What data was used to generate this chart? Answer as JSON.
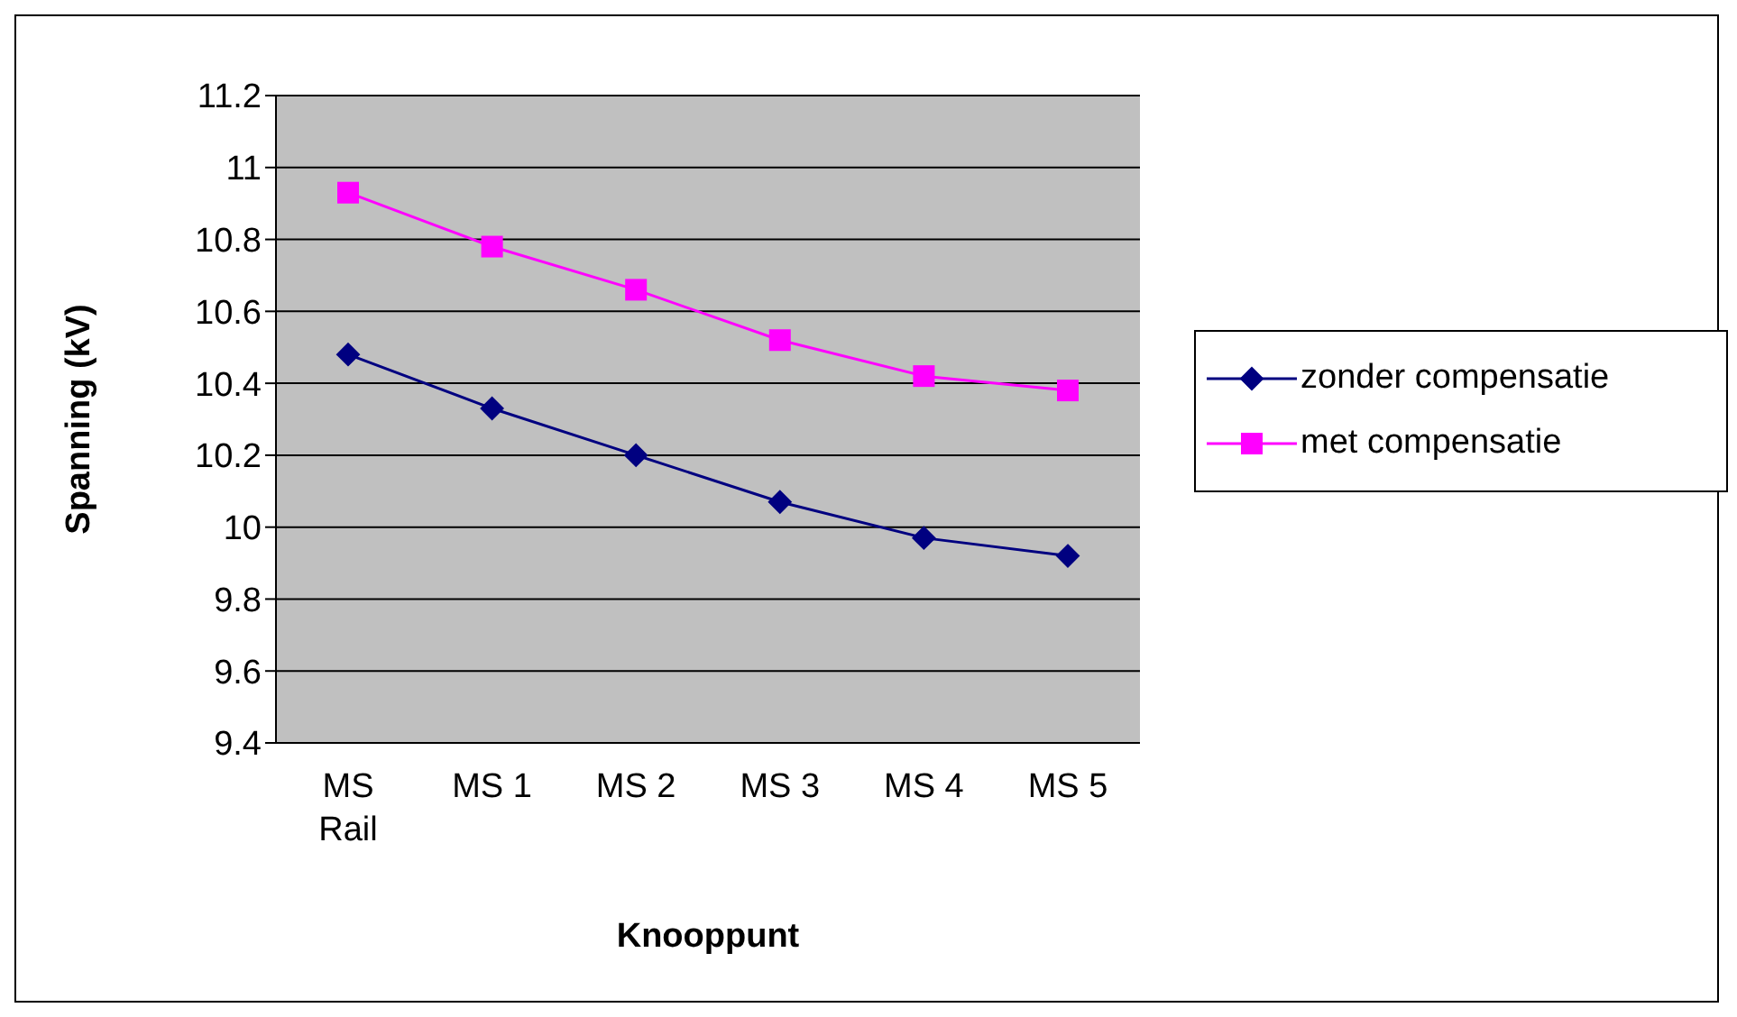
{
  "chart_data": {
    "type": "line",
    "xlabel": "Knooppunt",
    "ylabel": "Spanning (kV)",
    "categories": [
      "MS Rail",
      "MS 1",
      "MS 2",
      "MS 3",
      "MS 4",
      "MS 5"
    ],
    "series": [
      {
        "name": "zonder compensatie",
        "color": "#000080",
        "marker": "diamond",
        "values": [
          10.48,
          10.33,
          10.2,
          10.07,
          9.97,
          9.92
        ]
      },
      {
        "name": "met compensatie",
        "color": "#ff00ff",
        "marker": "square",
        "values": [
          10.93,
          10.78,
          10.66,
          10.52,
          10.42,
          10.38
        ]
      }
    ],
    "ylim": [
      9.4,
      11.2
    ],
    "yticks": [
      9.4,
      9.6,
      9.8,
      10,
      10.2,
      10.4,
      10.6,
      10.8,
      11,
      11.2
    ],
    "grid": "y",
    "legend": "right"
  }
}
